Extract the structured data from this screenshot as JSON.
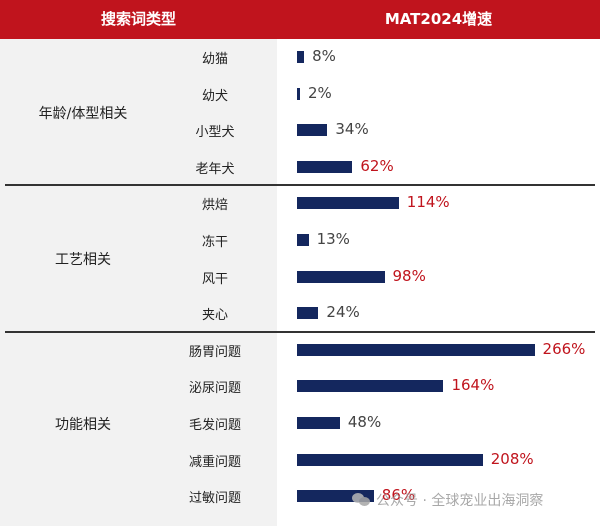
{
  "header": {
    "col1": "搜索词类型",
    "col2": "MAT2024增速"
  },
  "colors": {
    "header_bg": "#c0141d",
    "bar": "#14275e",
    "value_normal": "#444444",
    "value_high": "#c0141d"
  },
  "chart_data": {
    "type": "bar",
    "orientation": "horizontal",
    "unit": "%",
    "groups": [
      {
        "name": "年龄/体型相关",
        "categories": [
          "幼猫",
          "幼犬",
          "小型犬",
          "老年犬"
        ],
        "values": [
          8,
          2,
          34,
          62
        ]
      },
      {
        "name": "工艺相关",
        "categories": [
          "烘焙",
          "冻干",
          "风干",
          "夹心"
        ],
        "values": [
          114,
          13,
          98,
          24
        ]
      },
      {
        "name": "功能相关",
        "categories": [
          "肠胃问题",
          "泌尿问题",
          "毛发问题",
          "减重问题",
          "过敏问题"
        ],
        "values": [
          266,
          164,
          48,
          208,
          86
        ]
      }
    ],
    "highlight_rule": "values above 50% shown in red"
  },
  "watermark": {
    "text": "公众号 · 全球宠业出海洞察",
    "icon": "wechat-icon"
  }
}
